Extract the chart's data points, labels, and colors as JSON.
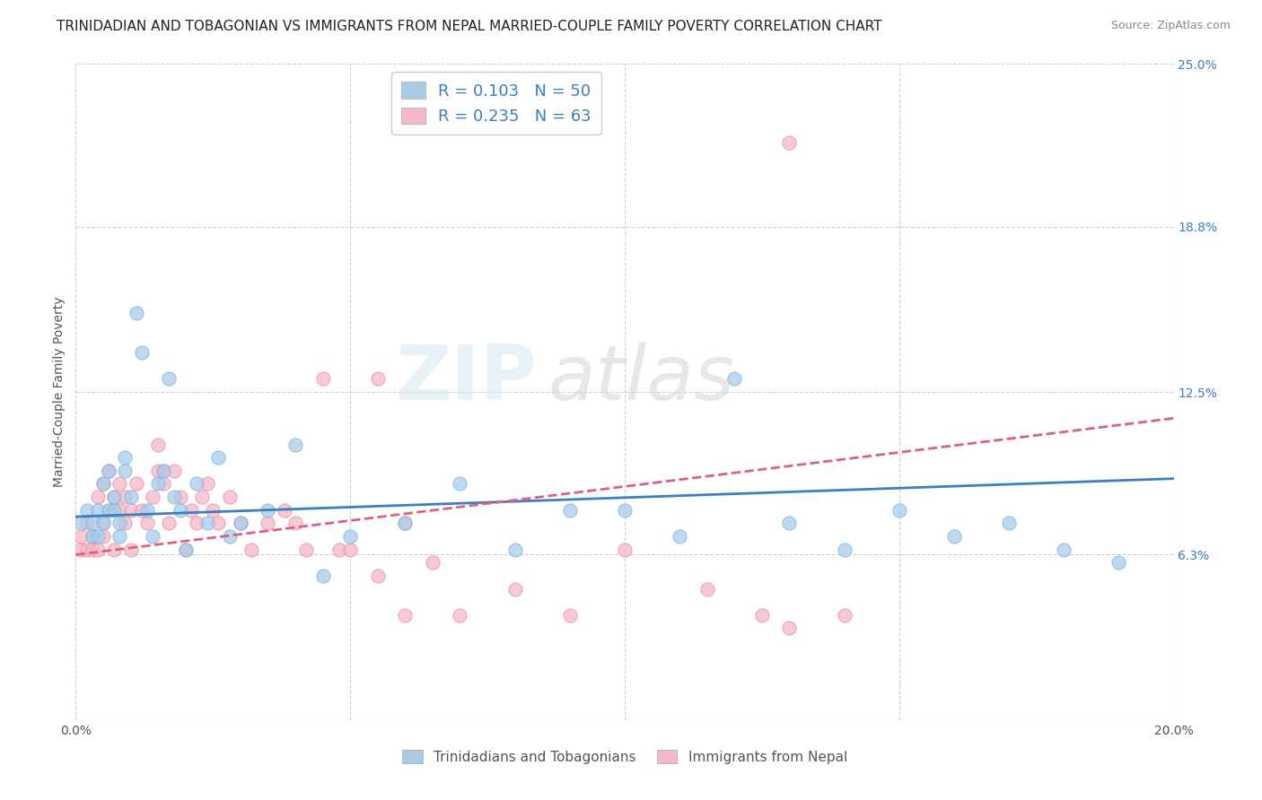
{
  "title": "TRINIDADIAN AND TOBAGONIAN VS IMMIGRANTS FROM NEPAL MARRIED-COUPLE FAMILY POVERTY CORRELATION CHART",
  "source": "Source: ZipAtlas.com",
  "ylabel": "Married-Couple Family Poverty",
  "x_min": 0.0,
  "x_max": 0.2,
  "y_min": 0.0,
  "y_max": 0.25,
  "x_ticks": [
    0.0,
    0.05,
    0.1,
    0.15,
    0.2
  ],
  "x_tick_labels": [
    "0.0%",
    "",
    "",
    "",
    "20.0%"
  ],
  "y_tick_labels_right": [
    "25.0%",
    "18.8%",
    "12.5%",
    "6.3%",
    ""
  ],
  "y_tick_positions_right": [
    0.25,
    0.188,
    0.125,
    0.063,
    0.0
  ],
  "watermark_zip": "ZIP",
  "watermark_atlas": "atlas",
  "series": [
    {
      "name": "Trinidadians and Tobagonians",
      "color": "#a8cce8",
      "edge_color": "#7eb8e8",
      "R": 0.103,
      "N": 50,
      "x": [
        0.001,
        0.002,
        0.003,
        0.003,
        0.004,
        0.004,
        0.005,
        0.005,
        0.006,
        0.006,
        0.007,
        0.007,
        0.008,
        0.008,
        0.009,
        0.009,
        0.01,
        0.011,
        0.012,
        0.013,
        0.014,
        0.015,
        0.016,
        0.017,
        0.018,
        0.019,
        0.02,
        0.022,
        0.024,
        0.026,
        0.028,
        0.03,
        0.035,
        0.04,
        0.045,
        0.05,
        0.06,
        0.07,
        0.08,
        0.09,
        0.1,
        0.11,
        0.12,
        0.13,
        0.14,
        0.15,
        0.16,
        0.17,
        0.18,
        0.19
      ],
      "y": [
        0.075,
        0.08,
        0.075,
        0.07,
        0.08,
        0.07,
        0.09,
        0.075,
        0.08,
        0.095,
        0.08,
        0.085,
        0.07,
        0.075,
        0.095,
        0.1,
        0.085,
        0.155,
        0.14,
        0.08,
        0.07,
        0.09,
        0.095,
        0.13,
        0.085,
        0.08,
        0.065,
        0.09,
        0.075,
        0.1,
        0.07,
        0.075,
        0.08,
        0.105,
        0.055,
        0.07,
        0.075,
        0.09,
        0.065,
        0.08,
        0.08,
        0.07,
        0.13,
        0.075,
        0.065,
        0.08,
        0.07,
        0.075,
        0.065,
        0.06
      ]
    },
    {
      "name": "Immigrants from Nepal",
      "color": "#f4b8c8",
      "edge_color": "#f090a8",
      "R": 0.235,
      "N": 63,
      "x": [
        0.001,
        0.001,
        0.002,
        0.002,
        0.003,
        0.003,
        0.004,
        0.004,
        0.005,
        0.005,
        0.005,
        0.006,
        0.006,
        0.007,
        0.007,
        0.008,
        0.008,
        0.009,
        0.009,
        0.01,
        0.01,
        0.011,
        0.012,
        0.013,
        0.014,
        0.015,
        0.015,
        0.016,
        0.016,
        0.017,
        0.018,
        0.019,
        0.02,
        0.021,
        0.022,
        0.023,
        0.024,
        0.025,
        0.026,
        0.028,
        0.03,
        0.032,
        0.035,
        0.038,
        0.04,
        0.042,
        0.045,
        0.048,
        0.05,
        0.055,
        0.06,
        0.065,
        0.07,
        0.08,
        0.09,
        0.1,
        0.115,
        0.125,
        0.13,
        0.14,
        0.055,
        0.13,
        0.06
      ],
      "y": [
        0.065,
        0.07,
        0.065,
        0.075,
        0.07,
        0.065,
        0.065,
        0.085,
        0.075,
        0.07,
        0.09,
        0.08,
        0.095,
        0.065,
        0.085,
        0.08,
        0.09,
        0.075,
        0.085,
        0.065,
        0.08,
        0.09,
        0.08,
        0.075,
        0.085,
        0.095,
        0.105,
        0.09,
        0.095,
        0.075,
        0.095,
        0.085,
        0.065,
        0.08,
        0.075,
        0.085,
        0.09,
        0.08,
        0.075,
        0.085,
        0.075,
        0.065,
        0.075,
        0.08,
        0.075,
        0.065,
        0.13,
        0.065,
        0.065,
        0.055,
        0.075,
        0.06,
        0.04,
        0.05,
        0.04,
        0.065,
        0.05,
        0.04,
        0.035,
        0.04,
        0.13,
        0.22,
        0.04
      ]
    }
  ],
  "regression_lines": [
    {
      "name": "Trinidadians and Tobagonians",
      "color": "#3a7fc1",
      "x_start": 0.0,
      "y_start": 0.0775,
      "x_end": 0.2,
      "y_end": 0.092,
      "linestyle": "solid",
      "linewidth": 2.0
    },
    {
      "name": "Immigrants from Nepal",
      "color": "#e0607a",
      "x_start": 0.0,
      "y_start": 0.063,
      "x_end": 0.2,
      "y_end": 0.115,
      "linestyle": "dashed",
      "linewidth": 2.0
    }
  ],
  "legend_top": {
    "blue_label": "R = 0.103   N = 50",
    "pink_label": "R = 0.235   N = 63",
    "blue_color": "#a8cce8",
    "pink_color": "#f4b8c8",
    "text_color": "#3a7fc1",
    "fontsize": 13
  },
  "legend_bottom": {
    "blue_label": "Trinidadians and Tobagonians",
    "pink_label": "Immigrants from Nepal",
    "blue_color": "#a8cce8",
    "pink_color": "#f4b8c8",
    "fontsize": 11
  },
  "title_fontsize": 11,
  "source_fontsize": 9,
  "ylabel_fontsize": 10,
  "marker_size": 120,
  "background_color": "#ffffff",
  "grid_color": "#d0d0d0"
}
